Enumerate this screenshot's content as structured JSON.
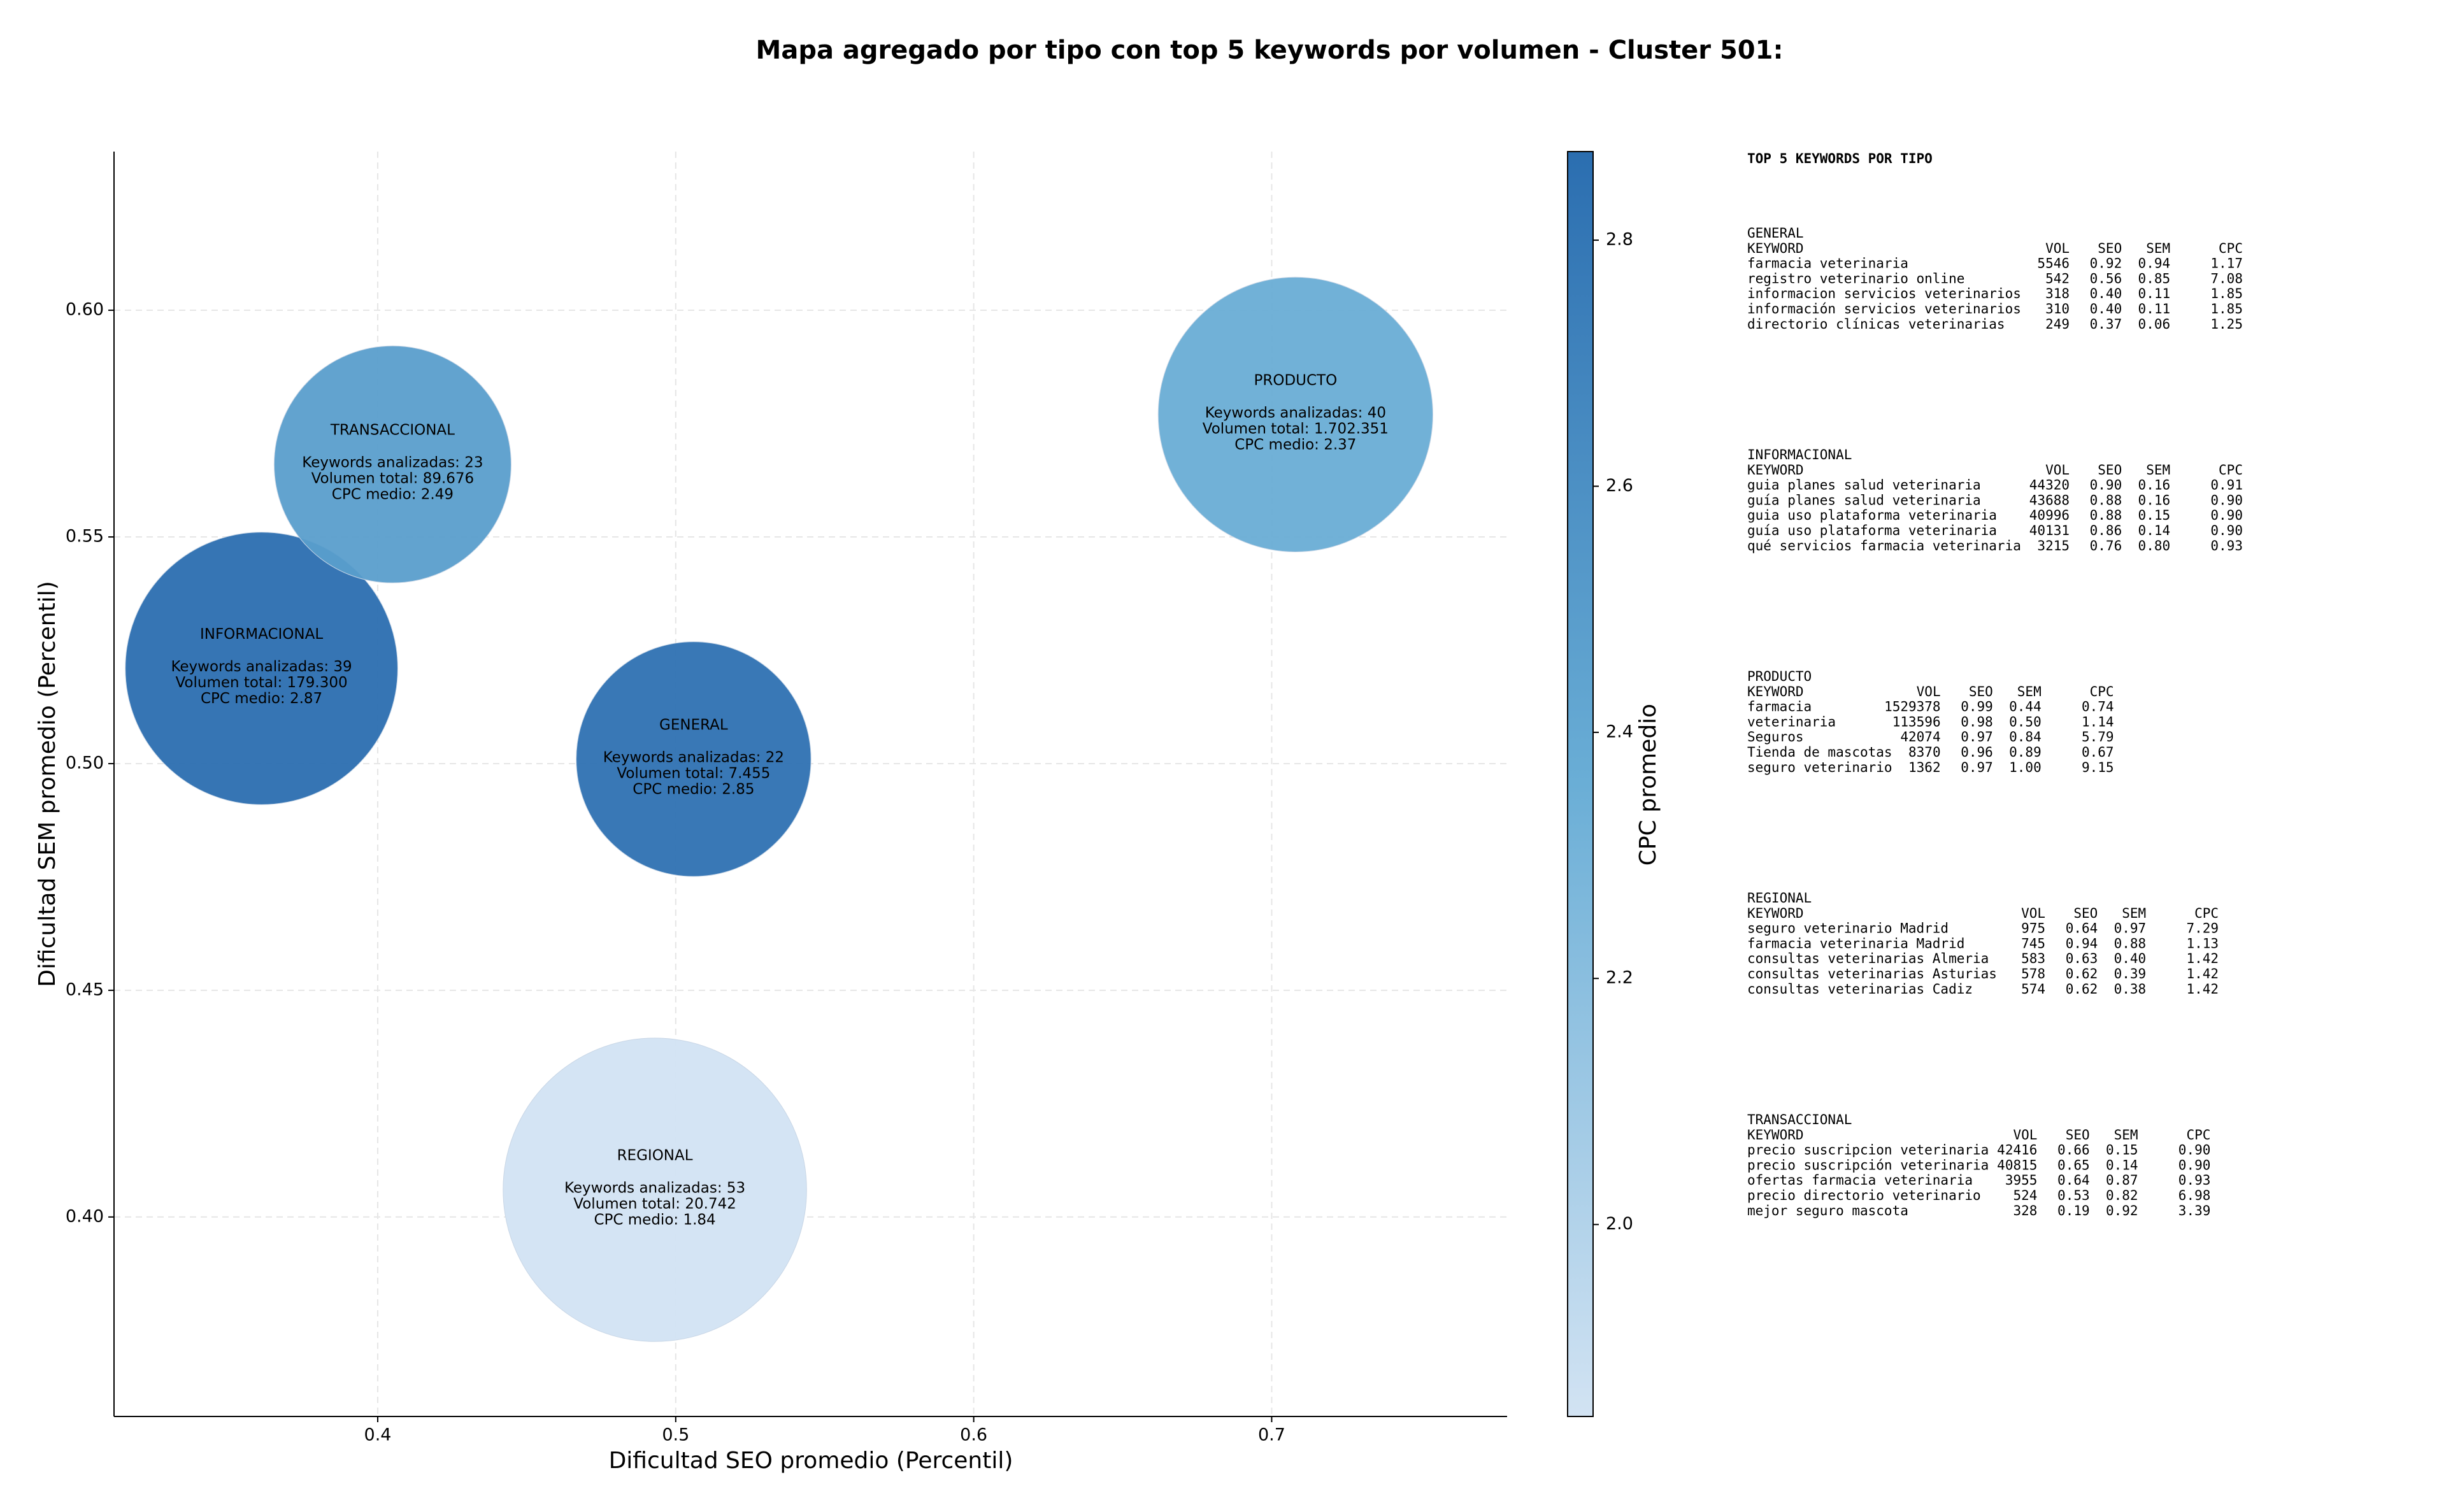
{
  "chart_data": {
    "type": "bubble",
    "title": "Mapa agregado por tipo con top 5 keywords por volumen - Cluster 501:",
    "xlabel": "Dificultad SEO promedio (Percentil)",
    "ylabel": "Dificultad SEM promedio (Percentil)",
    "xlim": [
      0.3115,
      0.779
    ],
    "ylim": [
      0.356,
      0.635
    ],
    "xticks": [
      0.4,
      0.5,
      0.6,
      0.7
    ],
    "yticks": [
      {
        "value": 0.4,
        "label": "0.40"
      },
      {
        "value": 0.45,
        "label": "0.45"
      },
      {
        "value": 0.5,
        "label": "0.50"
      },
      {
        "value": 0.55,
        "label": "0.55"
      },
      {
        "value": 0.6,
        "label": "0.60"
      }
    ],
    "grid": true,
    "categories": [
      "INFORMACIONAL",
      "TRANSACCIONAL",
      "GENERAL",
      "REGIONAL",
      "PRODUCTO"
    ],
    "x": [
      0.361,
      0.405,
      0.506,
      0.493,
      0.708
    ],
    "y": [
      0.521,
      0.566,
      0.501,
      0.406,
      0.577
    ],
    "size": [
      39,
      23,
      22,
      53,
      40
    ],
    "color_values": [
      2.87,
      2.49,
      2.85,
      1.84,
      2.37
    ],
    "labels": [
      [
        "Keywords analizadas: 39",
        "Volumen total: 179.300",
        "CPC medio: 2.87"
      ],
      [
        "Keywords analizadas: 23",
        "Volumen total: 89.676",
        "CPC medio: 2.49"
      ],
      [
        "Keywords analizadas: 22",
        "Volumen total: 7.455",
        "CPC medio: 2.85"
      ],
      [
        "Keywords analizadas: 53",
        "Volumen total: 20.742",
        "CPC medio: 1.84"
      ],
      [
        "Keywords analizadas: 40",
        "Volumen total: 1.702.351",
        "CPC medio: 2.37"
      ]
    ],
    "colorbar": {
      "label": "CPC promedio",
      "lim": [
        1.844,
        2.872
      ],
      "ticks": [
        {
          "value": 2.0,
          "label": "2.0"
        },
        2.2,
        2.4,
        2.6,
        2.8
      ],
      "colormap": [
        "#d2e3f3",
        "#6aaed6",
        "#2b6eb0"
      ]
    },
    "keyword_table": {
      "title": "TOP 5 KEYWORDS POR TIPO",
      "columns": [
        "KEYWORD",
        "VOL",
        "SEO",
        "SEM",
        "CPC"
      ],
      "sections": [
        {
          "name": "GENERAL",
          "rows": [
            [
              "farmacia veterinaria",
              "5546",
              "0.92",
              "0.94",
              "1.17"
            ],
            [
              "registro veterinario online",
              "542",
              "0.56",
              "0.85",
              "7.08"
            ],
            [
              "informacion servicios veterinarios",
              "318",
              "0.40",
              "0.11",
              "1.85"
            ],
            [
              "información servicios veterinarios",
              "310",
              "0.40",
              "0.11",
              "1.85"
            ],
            [
              "directorio clínicas veterinarias",
              "249",
              "0.37",
              "0.06",
              "1.25"
            ]
          ]
        },
        {
          "name": "INFORMACIONAL",
          "rows": [
            [
              "guia planes salud veterinaria",
              "44320",
              "0.90",
              "0.16",
              "0.91"
            ],
            [
              "guía planes salud veterinaria",
              "43688",
              "0.88",
              "0.16",
              "0.90"
            ],
            [
              "guia uso plataforma veterinaria",
              "40996",
              "0.88",
              "0.15",
              "0.90"
            ],
            [
              "guía uso plataforma veterinaria",
              "40131",
              "0.86",
              "0.14",
              "0.90"
            ],
            [
              "qué servicios farmacia veterinaria",
              "3215",
              "0.76",
              "0.80",
              "0.93"
            ]
          ]
        },
        {
          "name": "PRODUCTO",
          "rows": [
            [
              "farmacia",
              "1529378",
              "0.99",
              "0.44",
              "0.74"
            ],
            [
              "veterinaria",
              "113596",
              "0.98",
              "0.50",
              "1.14"
            ],
            [
              "Seguros",
              "42074",
              "0.97",
              "0.84",
              "5.79"
            ],
            [
              "Tienda de mascotas",
              "8370",
              "0.96",
              "0.89",
              "0.67"
            ],
            [
              "seguro veterinario",
              "1362",
              "0.97",
              "1.00",
              "9.15"
            ]
          ]
        },
        {
          "name": "REGIONAL",
          "rows": [
            [
              "seguro veterinario Madrid",
              "975",
              "0.64",
              "0.97",
              "7.29"
            ],
            [
              "farmacia veterinaria Madrid",
              "745",
              "0.94",
              "0.88",
              "1.13"
            ],
            [
              "consultas veterinarias Almeria",
              "583",
              "0.63",
              "0.40",
              "1.42"
            ],
            [
              "consultas veterinarias Asturias",
              "578",
              "0.62",
              "0.39",
              "1.42"
            ],
            [
              "consultas veterinarias Cadiz",
              "574",
              "0.62",
              "0.38",
              "1.42"
            ]
          ]
        },
        {
          "name": "TRANSACCIONAL",
          "rows": [
            [
              "precio suscripcion veterinaria",
              "42416",
              "0.66",
              "0.15",
              "0.90"
            ],
            [
              "precio suscripción veterinaria",
              "40815",
              "0.65",
              "0.14",
              "0.90"
            ],
            [
              "ofertas farmacia veterinaria",
              "3955",
              "0.64",
              "0.87",
              "0.93"
            ],
            [
              "precio directorio veterinario",
              "524",
              "0.53",
              "0.82",
              "6.98"
            ],
            [
              "mejor seguro mascota",
              "328",
              "0.19",
              "0.92",
              "3.39"
            ]
          ]
        }
      ]
    }
  }
}
